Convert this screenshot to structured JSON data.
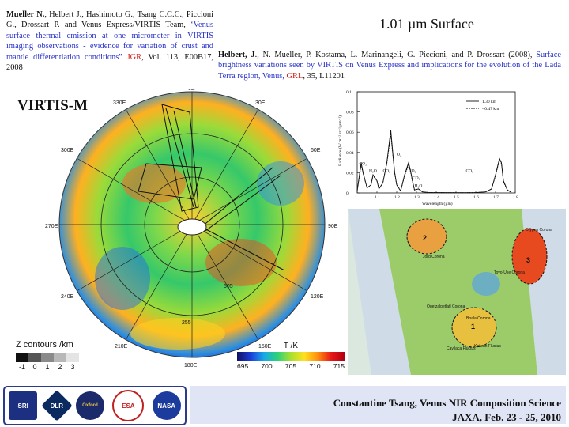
{
  "slide": {
    "title": "1.01 µm Surface",
    "instrument_label": "VIRTIS-M"
  },
  "ref_left": {
    "authors_bold": "Mueller N.",
    "authors_rest": ", Helbert J., Hashimoto G., Tsang C.C.C., Piccioni G., Drossart P. and Venus Express/VIRTIS Team, ",
    "title": "‘Venus surface thermal emission at one micrometer in VIRTIS imaging observations - evidence for variation of crust and mantle differentiation conditions”",
    "journal": "JGR",
    "rest": ", Vol. 113, E00B17, 2008"
  },
  "ref_right": {
    "authors_bold": "Helbert, J",
    "authors_rest": "., N. Mueller, P. Kostama, L. Marinangeli, G. Piccioni, and P. Drossart (2008), ",
    "title": "Surface brightness variations seen by VIRTIS on Venus Express and implications for the evolution of the Lada Terra region, Venus,",
    "journal": "GRL",
    "rest": ", 35, L11201"
  },
  "polar_map": {
    "longitude_labels": [
      "0E",
      "30E",
      "60E",
      "90E",
      "120E",
      "150E",
      "180E",
      "210E",
      "240E",
      "270E",
      "300E",
      "330E"
    ],
    "contour_labels": [
      "255",
      "505",
      "5"
    ]
  },
  "z_legend": {
    "title": "Z contours /km",
    "ticks": [
      "-1",
      "0",
      "1",
      "2",
      "3"
    ],
    "colors": [
      "#111111",
      "#555555",
      "#8a8a8a",
      "#b8b8b8",
      "#e4e4e4"
    ]
  },
  "t_legend": {
    "title": "T /K",
    "ticks": [
      "695",
      "700",
      "705",
      "710",
      "715"
    ]
  },
  "chart_data": {
    "type": "line",
    "title": "",
    "xlabel": "Wavelength (µm)",
    "ylabel": "Radiance (W m⁻² sr⁻¹ µm⁻¹)",
    "xlim": [
      1.0,
      1.8
    ],
    "ylim": [
      0,
      0.1
    ],
    "xticks": [
      "1",
      "1.1",
      "1.2",
      "1.3",
      "1.4",
      "1.5",
      "1.6",
      "1.7",
      "1.8"
    ],
    "yticks": [
      "0",
      "0.02",
      "0.04",
      "0.06",
      "0.08",
      "0.1"
    ],
    "legend": [
      "1.30 km",
      "- 0.47 km"
    ],
    "legend_position": "top-right",
    "annotations": [
      "CO₂",
      "H₂O",
      "CO₂",
      "O₂",
      "CO₂",
      "CO₂",
      "H₂O",
      "CO₂"
    ],
    "series": [
      {
        "name": "1.30 km",
        "x": [
          1.0,
          1.02,
          1.03,
          1.05,
          1.07,
          1.08,
          1.1,
          1.11,
          1.13,
          1.15,
          1.17,
          1.18,
          1.19,
          1.2,
          1.22,
          1.24,
          1.26,
          1.27,
          1.28,
          1.29,
          1.31,
          1.33,
          1.36,
          1.4,
          1.5,
          1.6,
          1.65,
          1.68,
          1.7,
          1.72,
          1.73,
          1.74,
          1.76,
          1.78
        ],
        "y": [
          0.002,
          0.03,
          0.02,
          0.005,
          0.008,
          0.018,
          0.012,
          0.004,
          0.01,
          0.03,
          0.062,
          0.04,
          0.02,
          0.008,
          0.002,
          0.018,
          0.03,
          0.022,
          0.012,
          0.003,
          0.004,
          0.001,
          0.0005,
          0.0003,
          0.0002,
          0.0003,
          0.001,
          0.004,
          0.018,
          0.034,
          0.03,
          0.012,
          0.003,
          0.0005
        ]
      },
      {
        "name": "- 0.47 km",
        "x": [
          1.0,
          1.02,
          1.03,
          1.05,
          1.07,
          1.08,
          1.1,
          1.11,
          1.13,
          1.15,
          1.17,
          1.18,
          1.19,
          1.2,
          1.22,
          1.24,
          1.26,
          1.27,
          1.28,
          1.29,
          1.31,
          1.33,
          1.36,
          1.4,
          1.5,
          1.6,
          1.65,
          1.68,
          1.7,
          1.72,
          1.73,
          1.74,
          1.76,
          1.78
        ],
        "y": [
          0.002,
          0.028,
          0.019,
          0.005,
          0.008,
          0.017,
          0.012,
          0.004,
          0.01,
          0.029,
          0.058,
          0.038,
          0.019,
          0.008,
          0.002,
          0.017,
          0.028,
          0.021,
          0.011,
          0.003,
          0.004,
          0.001,
          0.0005,
          0.0003,
          0.0002,
          0.0003,
          0.001,
          0.004,
          0.017,
          0.033,
          0.029,
          0.011,
          0.003,
          0.0005
        ]
      }
    ]
  },
  "lada_map": {
    "labels": [
      "Jord Corona",
      "Otygen Corona",
      "Quetzalpetlatl Corona",
      "Boala Corona",
      "Cavilaca Fluctus",
      "Kaiwan Fluctus",
      "Toyo-Uke Corona"
    ],
    "numbers": [
      "1",
      "2",
      "3"
    ]
  },
  "footer": {
    "logos": [
      "SRI",
      "DLR",
      "Oxford",
      "ESA",
      "NASA"
    ],
    "line1": "Constantine Tsang, Venus NIR Composition Science",
    "line2": "JAXA, Feb. 23 - 25, 2010"
  }
}
